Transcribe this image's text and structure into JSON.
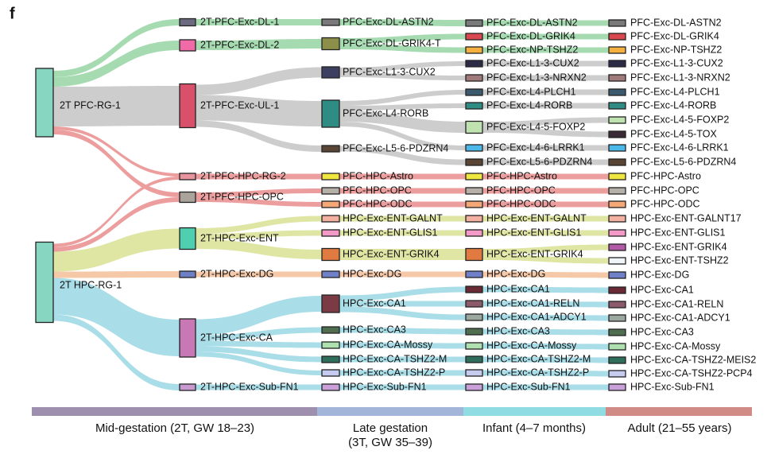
{
  "panel_label": "f",
  "columns": [
    {
      "nodes": [
        {
          "label": "2T PFC-RG-1",
          "color": "#86d6c2"
        },
        {
          "label": "2T HPC-RG-1",
          "color": "#86d6c2"
        }
      ]
    },
    {
      "nodes": [
        {
          "label": "2T-PFC-Exc-DL-1",
          "color": "#6c6a80"
        },
        {
          "label": "2T-PFC-Exc-DL-2",
          "color": "#f06aa8"
        },
        {
          "label": "2T-PFC-Exc-UL-1",
          "color": "#d9506a"
        },
        {
          "label": "2T-PFC-HPC-RG-2",
          "color": "#e8949e"
        },
        {
          "label": "2T-PFC-HPC-OPC",
          "color": "#aaa49c"
        },
        {
          "label": "2T-HPC-Exc-ENT",
          "color": "#4fcfb0"
        },
        {
          "label": "2T-HPC-Exc-DG",
          "color": "#6e7fc4"
        },
        {
          "label": "2T-HPC-Exc-CA",
          "color": "#c978b6"
        },
        {
          "label": "2T-HPC-Exc-Sub-FN1",
          "color": "#c89ad0"
        }
      ]
    },
    {
      "nodes": [
        {
          "label": "PFC-Exc-DL-ASTN2",
          "color": "#7a7a7a"
        },
        {
          "label": "PFC-Exc-DL-GRIK4-T",
          "color": "#8c8f4a"
        },
        {
          "label": "PFC-Exc-L1-3-CUX2",
          "color": "#3c3f60"
        },
        {
          "label": "PFC-Exc-L4-RORB",
          "color": "#2e8c84"
        },
        {
          "label": "PFC-Exc-L5-6-PDZRN4",
          "color": "#5a4535"
        },
        {
          "label": "PFC-HPC-Astro",
          "color": "#f0e640"
        },
        {
          "label": "PFC-HPC-OPC",
          "color": "#b5b0a8"
        },
        {
          "label": "PFC-HPC-ODC",
          "color": "#f4a878"
        },
        {
          "label": "HPC-Exc-ENT-GALNT",
          "color": "#f4b0a0"
        },
        {
          "label": "HPC-Exc-ENT-GLIS1",
          "color": "#f39ac8"
        },
        {
          "label": "HPC-Exc-ENT-GRIK4",
          "color": "#e07a40"
        },
        {
          "label": "HPC-Exc-DG",
          "color": "#6f80c8"
        },
        {
          "label": "HPC-Exc-CA1",
          "color": "#7a3b45"
        },
        {
          "label": "HPC-Exc-CA3",
          "color": "#4f6e4f"
        },
        {
          "label": "HPC-Exc-CA-Mossy",
          "color": "#aee0b0"
        },
        {
          "label": "HPC-Exc-CA-TSHZ2-M",
          "color": "#2f6e5a"
        },
        {
          "label": "HPC-Exc-CA-TSHZ2-P",
          "color": "#c6cbf0"
        },
        {
          "label": "HPC-Exc-Sub-FN1",
          "color": "#c9a0d8"
        }
      ]
    },
    {
      "nodes": [
        {
          "label": "PFC-Exc-DL-ASTN2",
          "color": "#7a7a7a"
        },
        {
          "label": "PFC-Exc-DL-GRIK4",
          "color": "#d9484e"
        },
        {
          "label": "PFC-Exc-NP-TSHZ2",
          "color": "#f5b040"
        },
        {
          "label": "PFC-Exc-L1-3-CUX2",
          "color": "#2b2b48"
        },
        {
          "label": "PFC-Exc-L1-3-NRXN2",
          "color": "#a07a7a"
        },
        {
          "label": "PFC-Exc-L4-PLCH1",
          "color": "#3c5a6e"
        },
        {
          "label": "PFC-Exc-L4-RORB",
          "color": "#2e8c84"
        },
        {
          "label": "PFC-Exc-L4-5-FOXP2",
          "color": "#bfe3b0"
        },
        {
          "label": "PFC-Exc-L4-6-LRRK1",
          "color": "#4ab8e8"
        },
        {
          "label": "PFC-Exc-L5-6-PDZRN4",
          "color": "#5a4535"
        },
        {
          "label": "PFC-HPC-Astro",
          "color": "#f0e640"
        },
        {
          "label": "PFC-HPC-OPC",
          "color": "#b5b0a8"
        },
        {
          "label": "PFC-HPC-ODC",
          "color": "#f4a878"
        },
        {
          "label": "HPC-Exc-ENT-GALNT",
          "color": "#f4b0a0"
        },
        {
          "label": "HPC-Exc-ENT-GLIS1",
          "color": "#f39ac8"
        },
        {
          "label": "HPC-Exc-ENT-GRIK4",
          "color": "#e07a40"
        },
        {
          "label": "HPC-Exc-DG",
          "color": "#6f80c8"
        },
        {
          "label": "HPC-Exc-CA1",
          "color": "#6a2a35"
        },
        {
          "label": "HPC-Exc-CA1-RELN",
          "color": "#8c5a6a"
        },
        {
          "label": "HPC-Exc-CA1-ADCY1",
          "color": "#9aa8a0"
        },
        {
          "label": "HPC-Exc-CA3",
          "color": "#4f6e4f"
        },
        {
          "label": "HPC-Exc-CA-Mossy",
          "color": "#aee0b0"
        },
        {
          "label": "HPC-Exc-CA-TSHZ2-M",
          "color": "#2f6e5a"
        },
        {
          "label": "HPC-Exc-CA-TSHZ2-P",
          "color": "#c6cbf0"
        },
        {
          "label": "HPC-Exc-Sub-FN1",
          "color": "#c9a0d8"
        }
      ]
    },
    {
      "nodes": [
        {
          "label": "PFC-Exc-DL-ASTN2",
          "color": "#7a7a7a"
        },
        {
          "label": "PFC-Exc-DL-GRIK4",
          "color": "#d9484e"
        },
        {
          "label": "PFC-Exc-NP-TSHZ2",
          "color": "#f5b040"
        },
        {
          "label": "PFC-Exc-L1-3-CUX2",
          "color": "#2b2b48"
        },
        {
          "label": "PFC-Exc-L1-3-NRXN2",
          "color": "#a07a7a"
        },
        {
          "label": "PFC-Exc-L4-PLCH1",
          "color": "#3c5a6e"
        },
        {
          "label": "PFC-Exc-L4-RORB",
          "color": "#2e8c84"
        },
        {
          "label": "PFC-Exc-L4-5-FOXP2",
          "color": "#bfe3b0"
        },
        {
          "label": "PFC-Exc-L4-5-TOX",
          "color": "#3a2a35"
        },
        {
          "label": "PFC-Exc-L4-6-LRRK1",
          "color": "#4ab8e8"
        },
        {
          "label": "PFC-Exc-L5-6-PDZRN4",
          "color": "#5a4535"
        },
        {
          "label": "PFC-HPC-Astro",
          "color": "#f0e640"
        },
        {
          "label": "PFC-HPC-OPC",
          "color": "#b5b0a8"
        },
        {
          "label": "PFC-HPC-ODC",
          "color": "#f4a878"
        },
        {
          "label": "HPC-Exc-ENT-GALNT17",
          "color": "#f4b0a0"
        },
        {
          "label": "HPC-Exc-ENT-GLIS1",
          "color": "#f39ac8"
        },
        {
          "label": "HPC-Exc-ENT-GRIK4",
          "color": "#b05aa8"
        },
        {
          "label": "HPC-Exc-ENT-TSHZ2",
          "color": "#eef4f8"
        },
        {
          "label": "HPC-Exc-DG",
          "color": "#6f80c8"
        },
        {
          "label": "HPC-Exc-CA1",
          "color": "#6a2a35"
        },
        {
          "label": "HPC-Exc-CA1-RELN",
          "color": "#8c5a6a"
        },
        {
          "label": "HPC-Exc-CA1-ADCY1",
          "color": "#9aa8a0"
        },
        {
          "label": "HPC-Exc-CA3",
          "color": "#4f6e4f"
        },
        {
          "label": "HPC-Exc-CA-Mossy",
          "color": "#aee0b0"
        },
        {
          "label": "HPC-Exc-CA-TSHZ2-MEIS2",
          "color": "#2f6e5a"
        },
        {
          "label": "HPC-Exc-CA-TSHZ2-PCP4",
          "color": "#c6cbf0"
        },
        {
          "label": "HPC-Exc-Sub-FN1",
          "color": "#c9a0d8"
        }
      ]
    }
  ],
  "stages": [
    {
      "lines": [
        "Mid-gestation (2T, GW 18–23)"
      ],
      "color": "#9e8fae"
    },
    {
      "lines": [
        "Late gestation",
        "(3T, GW 35–39)"
      ],
      "color": "#a3b6da"
    },
    {
      "lines": [
        "Infant (4–7 months)"
      ],
      "color": "#8fdde3"
    },
    {
      "lines": [
        "Adult (21–55 years)"
      ],
      "color": "#d08b86"
    }
  ]
}
